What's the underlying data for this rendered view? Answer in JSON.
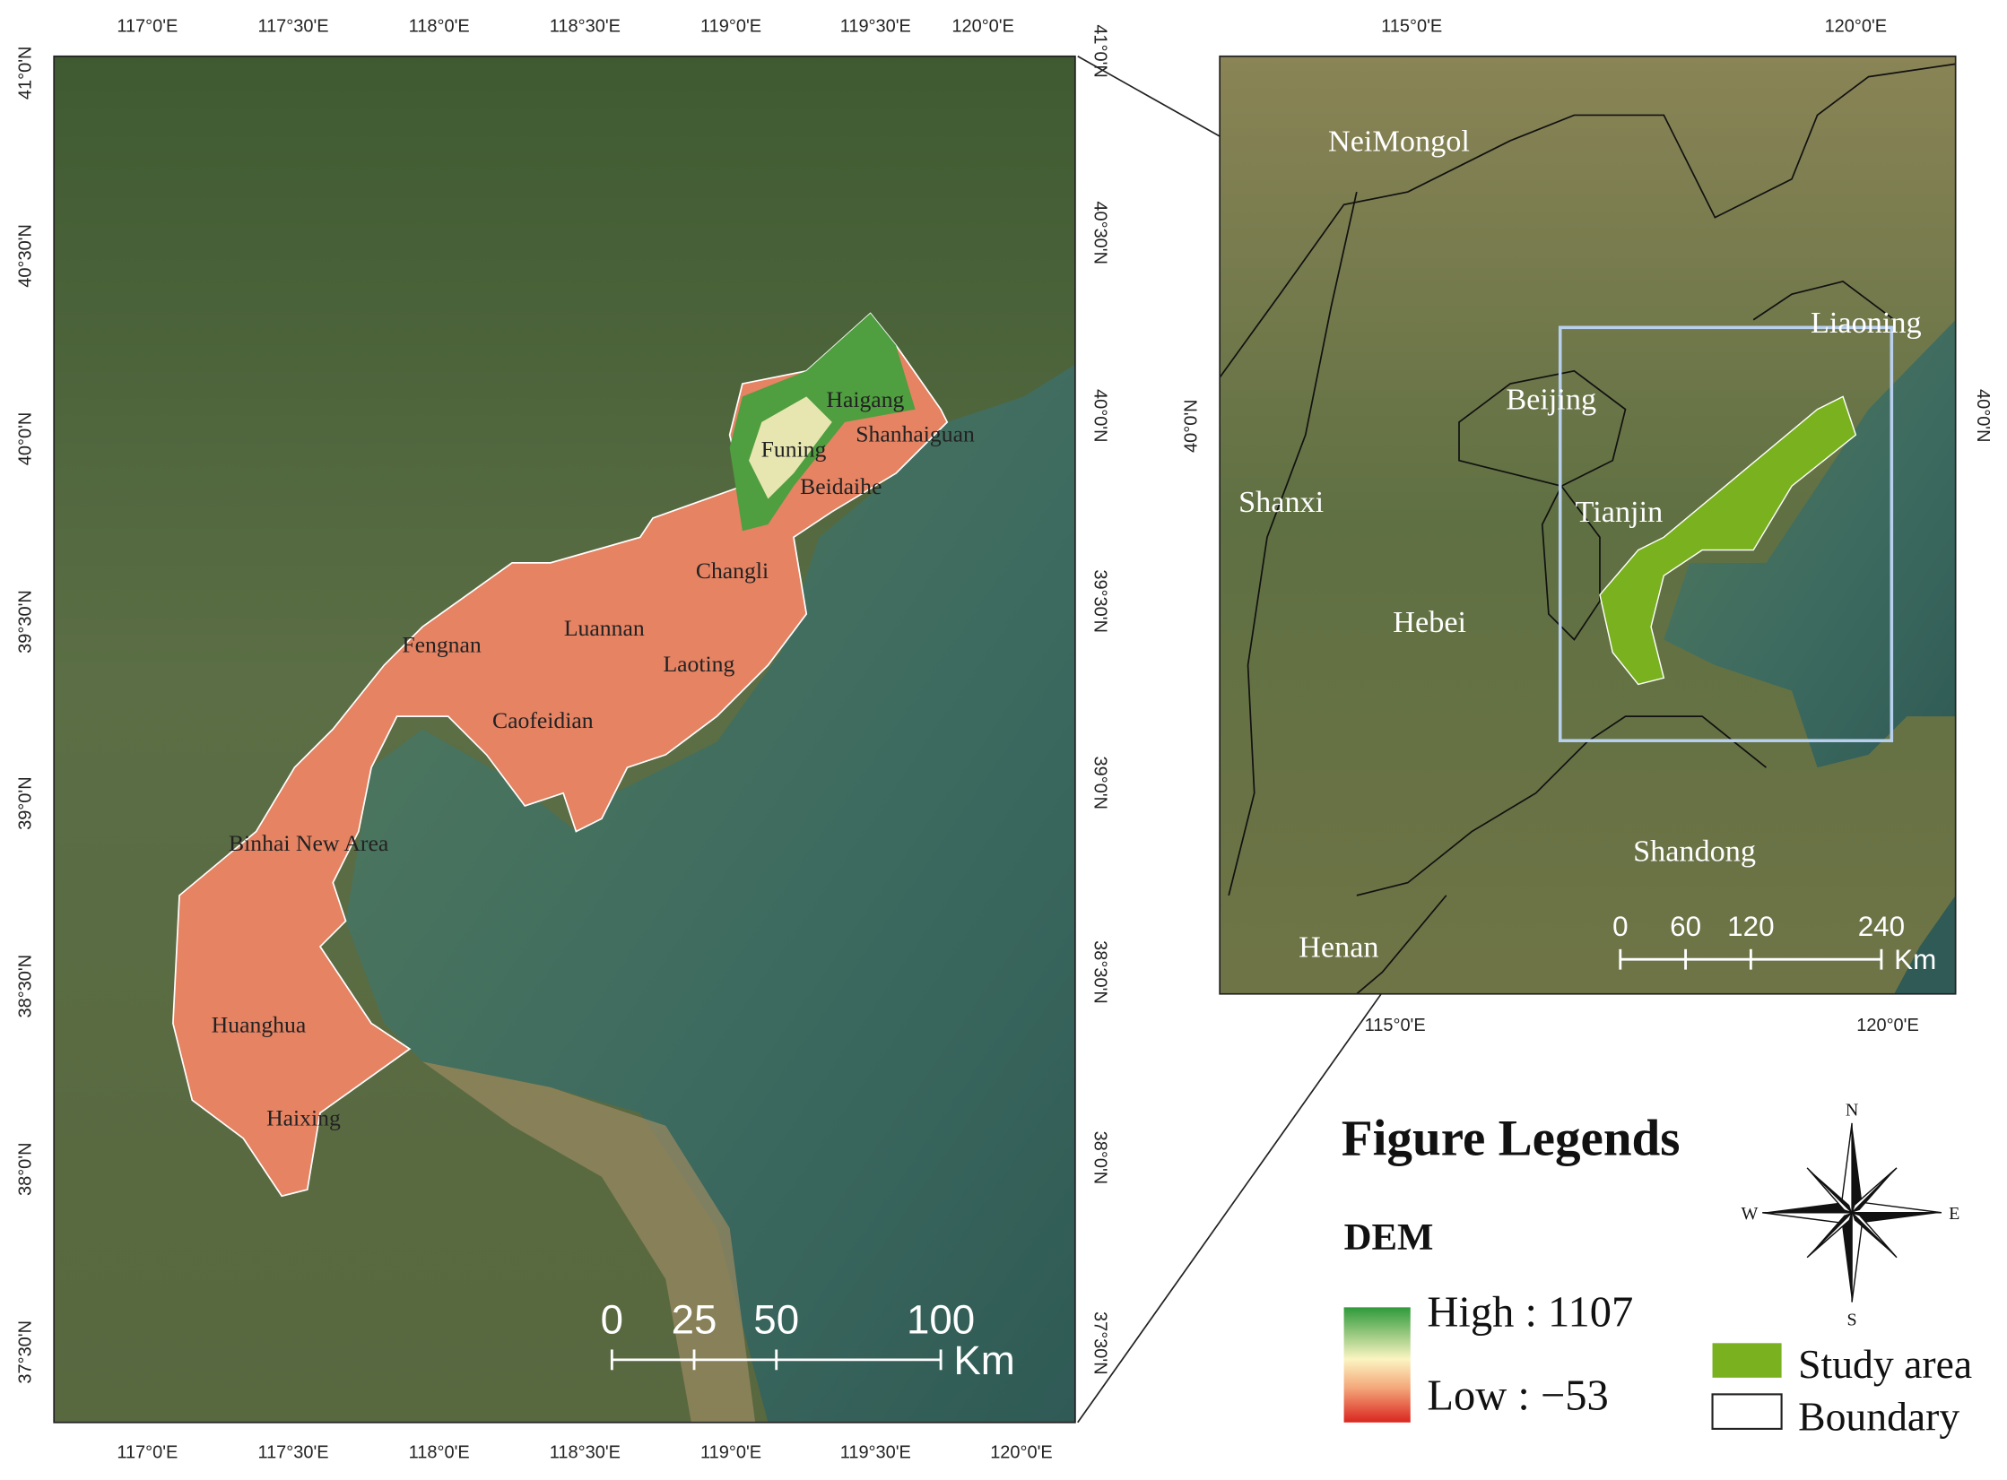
{
  "left_map": {
    "lon_labels": [
      "117°0'E",
      "117°30'E",
      "118°0'E",
      "118°30'E",
      "119°0'E",
      "119°30'E",
      "120°0'E"
    ],
    "lat_labels": [
      "41°0'N",
      "40°30'N",
      "40°0'N",
      "39°30'N",
      "39°0'N",
      "38°30'N",
      "38°0'N",
      "37°30'N"
    ],
    "places": [
      "Haigang",
      "Funing",
      "Shanhaiguan",
      "Beidaihe",
      "Changli",
      "Fengnan",
      "Luannan",
      "Laoting",
      "Caofeidian",
      "Binhai New Area",
      "Huanghua",
      "Haixing"
    ],
    "scale_bar": {
      "labels": [
        0,
        25,
        50,
        100
      ],
      "unit": "Km"
    }
  },
  "right_map": {
    "lon_labels": [
      "115°0'E",
      "120°0'E"
    ],
    "lat_labels": [
      "40°0'N"
    ],
    "places": [
      "NeiMongol",
      "Liaoning",
      "Beijing",
      "Shanxi",
      "Tianjin",
      "Hebei",
      "Shandong",
      "Henan"
    ],
    "scale_bar": {
      "labels": [
        0,
        60,
        120,
        240
      ],
      "unit": "Km"
    }
  },
  "legend": {
    "title": "Figure Legends",
    "dem_title": "DEM",
    "high": "High : 1107",
    "low": "Low : −53",
    "study_area": "Study area",
    "boundary": "Boundary",
    "compass": {
      "n": "N",
      "s": "S",
      "e": "E",
      "w": "W"
    }
  }
}
